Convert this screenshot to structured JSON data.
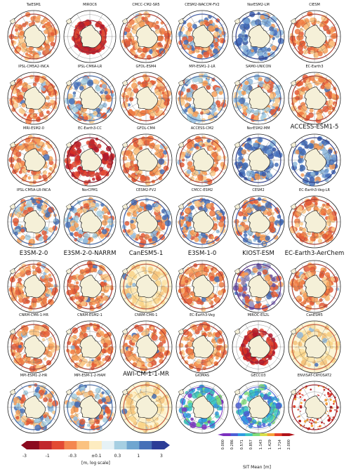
{
  "panels": [
    {
      "title": "TaiESM1",
      "style": "small",
      "pal": "warm"
    },
    {
      "title": "MIROC6",
      "style": "small",
      "pal": "warm-thin"
    },
    {
      "title": "CMCC-CM2-SR5",
      "style": "small",
      "pal": "warm"
    },
    {
      "title": "CESM2-WACCM-FV2",
      "style": "small",
      "pal": "warm-blue"
    },
    {
      "title": "NorESM2-LM",
      "style": "small",
      "pal": "blue"
    },
    {
      "title": "CIESM",
      "style": "small",
      "pal": "warm"
    },
    {
      "title": "IPSL-CM5A2-INCA",
      "style": "small",
      "pal": "warm"
    },
    {
      "title": "IPSL-CM6A-LR",
      "style": "small",
      "pal": "mixed"
    },
    {
      "title": "GFDL-ESM4",
      "style": "small",
      "pal": "warm"
    },
    {
      "title": "MPI-ESM1-2-LR",
      "style": "small",
      "pal": "mixed"
    },
    {
      "title": "SAM0-UNICON",
      "style": "small",
      "pal": "mixed"
    },
    {
      "title": "EC-Earth3",
      "style": "small",
      "pal": "warm"
    },
    {
      "title": "MRI-ESM2-0",
      "style": "small",
      "pal": "warm"
    },
    {
      "title": "EC-Earth3-CC",
      "style": "small",
      "pal": "deep"
    },
    {
      "title": "GFDL-CM4",
      "style": "small",
      "pal": "warm"
    },
    {
      "title": "ACCESS-CM2",
      "style": "small",
      "pal": "warm"
    },
    {
      "title": "NorESM2-MM",
      "style": "small",
      "pal": "blue"
    },
    {
      "title": "ACCESS-ESM1-5",
      "style": "large",
      "pal": "blue"
    },
    {
      "title": "IPSL-CM5A-LR-INCA",
      "style": "small",
      "pal": "mixed"
    },
    {
      "title": "NorCPM1",
      "style": "small",
      "pal": "mixed"
    },
    {
      "title": "CESM2-FV2",
      "style": "small",
      "pal": "warm-blue"
    },
    {
      "title": "CMCC-ESM2",
      "style": "small",
      "pal": "warm-blue"
    },
    {
      "title": "CESM2",
      "style": "small",
      "pal": "warm-blue"
    },
    {
      "title": "EC-Earth3-Veg-LR",
      "style": "small",
      "pal": "warm"
    },
    {
      "title": "E3SM-2-0",
      "style": "large",
      "pal": "warm"
    },
    {
      "title": "E3SM-2-0-NARRM",
      "style": "large",
      "pal": "warm"
    },
    {
      "title": "CanESM5-1",
      "style": "large",
      "pal": "light"
    },
    {
      "title": "E3SM-1-0",
      "style": "large",
      "pal": "warm"
    },
    {
      "title": "KIOST-ESM",
      "style": "large",
      "pal": "purple"
    },
    {
      "title": "EC-Earth3-AerChem",
      "style": "large",
      "pal": "warm"
    },
    {
      "title": "CNRM-CM6-1-HR",
      "style": "small",
      "pal": "warm"
    },
    {
      "title": "CNRM-ESM2-1",
      "style": "small",
      "pal": "warm"
    },
    {
      "title": "CNRM-CM6-1",
      "style": "small",
      "pal": "warm"
    },
    {
      "title": "EC-Earth3-Veg",
      "style": "small",
      "pal": "warm"
    },
    {
      "title": "MIROC-ES2L",
      "style": "small",
      "pal": "warm-thin"
    },
    {
      "title": "CanESM5",
      "style": "small",
      "pal": "light"
    },
    {
      "title": "MPI-ESM1-2-HR",
      "style": "small",
      "pal": "mixed"
    },
    {
      "title": "MPI-ESM-1-2-HAM",
      "style": "small",
      "pal": "mixed"
    },
    {
      "title": "AWI-CM-1-1-MR",
      "style": "large",
      "pal": "light"
    },
    {
      "title": "GIOMAS",
      "style": "small",
      "pal": "rainbow"
    },
    {
      "title": "GECCO3",
      "style": "small",
      "pal": "rainbow-light"
    },
    {
      "title": "ENVISAT-CRYOSAT2",
      "style": "small",
      "pal": "red-dots"
    }
  ],
  "colorbar_diff": {
    "label": "[m, log scale]",
    "ticks": [
      "-3",
      "-1",
      "-0.3",
      "±0.1",
      "0.3",
      "1",
      "3"
    ],
    "colors": [
      "#8b0a1f",
      "#c1272d",
      "#e34a33",
      "#f4874f",
      "#fbc280",
      "#fdecc0",
      "#e6f2f6",
      "#a6cfe2",
      "#6fa6d0",
      "#4670b7",
      "#2b3d97"
    ]
  },
  "colorbar_mean": {
    "label": "SIT Mean [m]",
    "ticks": [
      "0.000",
      "0.286",
      "0.571",
      "0.857",
      "1.143",
      "1.429",
      "1.714",
      "2.000"
    ],
    "colors": [
      "#7b2fbe",
      "#4d5fd6",
      "#2f9be0",
      "#3fc7c0",
      "#7fdc7a",
      "#d8e04a",
      "#f6a23a",
      "#e4402a",
      "#b0121a"
    ]
  }
}
